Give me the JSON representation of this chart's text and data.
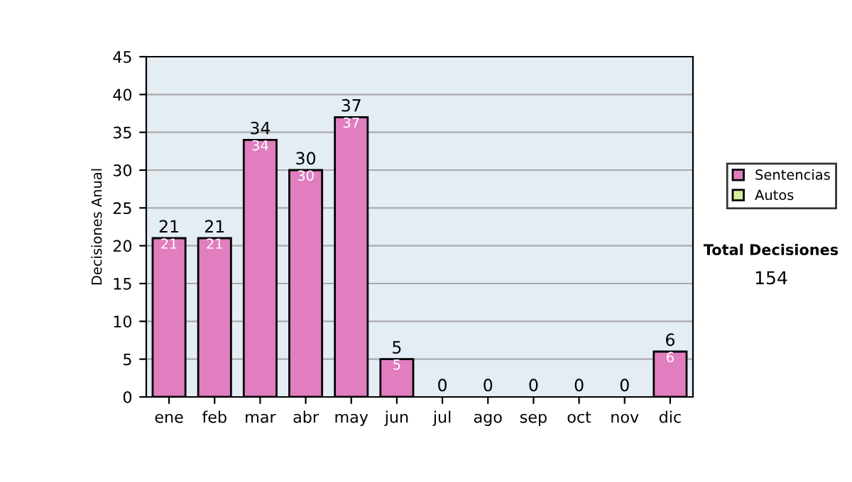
{
  "chart_data": {
    "type": "bar",
    "stacked": true,
    "ylabel": "Decisiones Anual",
    "categories": [
      "ene",
      "feb",
      "mar",
      "abr",
      "may",
      "jun",
      "jul",
      "ago",
      "sep",
      "oct",
      "nov",
      "dic"
    ],
    "series": [
      {
        "name": "Sentencias",
        "color": "#e07ec0",
        "values": [
          21,
          21,
          34,
          30,
          37,
          5,
          0,
          0,
          0,
          0,
          0,
          6
        ],
        "value_labels": [
          "21",
          "21",
          "34",
          "30",
          "37",
          "5",
          null,
          null,
          null,
          null,
          null,
          "6"
        ]
      },
      {
        "name": "Autos",
        "color": "#d8eca0",
        "values": [
          0,
          0,
          0,
          0,
          0,
          0,
          0,
          0,
          0,
          0,
          0,
          0
        ]
      }
    ],
    "totals": [
      "21",
      "21",
      "34",
      "30",
      "37",
      "5",
      "0",
      "0",
      "0",
      "0",
      "0",
      "6"
    ],
    "ylim": [
      0,
      45
    ],
    "yticks": [
      0,
      5,
      10,
      15,
      20,
      25,
      30,
      35,
      40,
      45
    ],
    "grid": "y",
    "legend": "right",
    "annotations": [
      "Total Decisiones",
      "154"
    ]
  }
}
